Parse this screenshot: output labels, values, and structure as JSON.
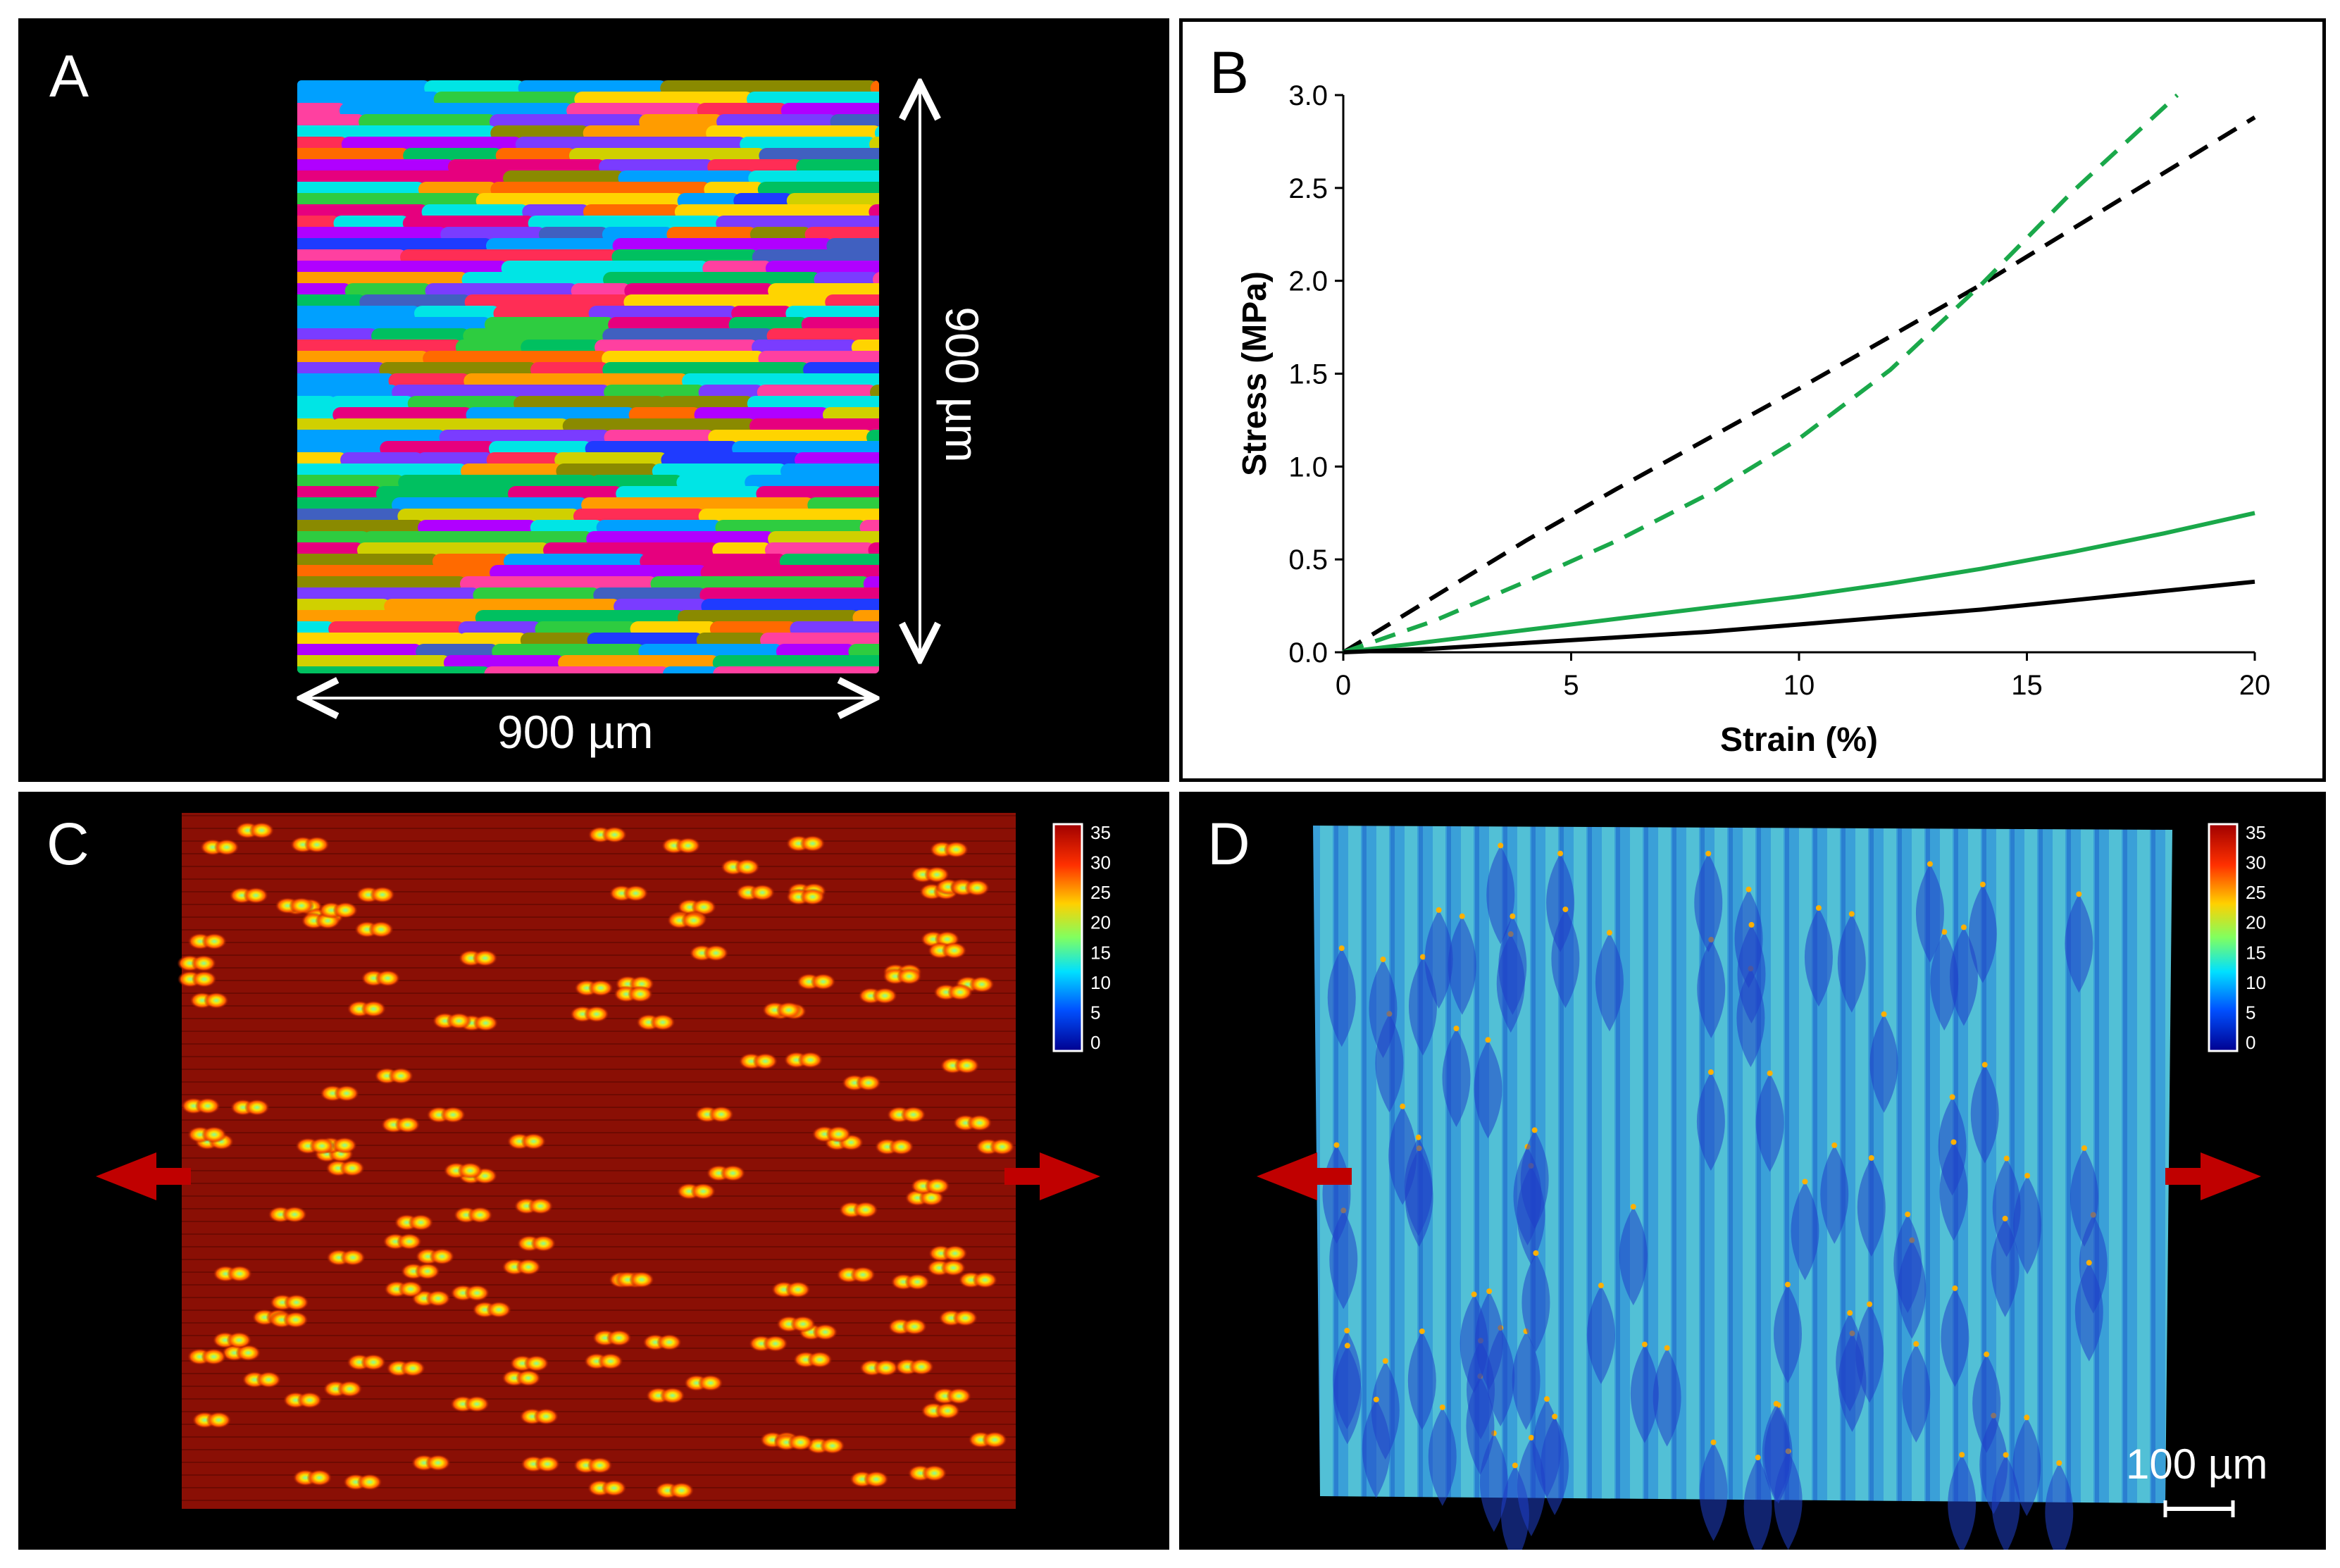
{
  "panels": {
    "a": {
      "letter": "A",
      "dim_horizontal": "900 µm",
      "dim_vertical": "900 µm"
    },
    "b": {
      "letter": "B"
    },
    "c": {
      "letter": "C",
      "colorbar_ticks": [
        "35",
        "30",
        "25",
        "20",
        "15",
        "10",
        "5",
        "0"
      ]
    },
    "d": {
      "letter": "D",
      "colorbar_ticks": [
        "35",
        "30",
        "25",
        "20",
        "15",
        "10",
        "5",
        "0"
      ],
      "scale_bar": "100 µm"
    }
  },
  "chart_data": {
    "type": "line",
    "title": "",
    "xlabel": "Strain (%)",
    "ylabel": "Stress (MPa)",
    "xlim": [
      0,
      20
    ],
    "ylim": [
      0,
      3.0
    ],
    "xticks": [
      "0",
      "5",
      "10",
      "15",
      "20"
    ],
    "yticks": [
      "0.0",
      "0.5",
      "1.0",
      "1.5",
      "2.0",
      "2.5",
      "3.0"
    ],
    "series": [
      {
        "color": "#000000",
        "style": "dashed",
        "x": [
          0,
          2,
          4,
          6,
          8,
          10,
          12,
          14,
          16,
          18,
          20
        ],
        "y": [
          0,
          0.3,
          0.6,
          0.88,
          1.15,
          1.42,
          1.7,
          1.98,
          2.28,
          2.58,
          2.88
        ]
      },
      {
        "color": "#1aa84a",
        "style": "dashed",
        "x": [
          0,
          2,
          4,
          6,
          8,
          10,
          12,
          14,
          16,
          18.3
        ],
        "y": [
          0,
          0.17,
          0.38,
          0.6,
          0.85,
          1.15,
          1.52,
          1.98,
          2.48,
          3.0
        ]
      },
      {
        "color": "#1aa84a",
        "style": "solid",
        "x": [
          0,
          2,
          4,
          6,
          8,
          10,
          12,
          14,
          16,
          18,
          20
        ],
        "y": [
          0,
          0.06,
          0.12,
          0.18,
          0.24,
          0.3,
          0.37,
          0.45,
          0.54,
          0.64,
          0.75
        ]
      },
      {
        "color": "#000000",
        "style": "solid",
        "x": [
          0,
          2,
          4,
          6,
          8,
          10,
          12,
          14,
          16,
          18,
          20
        ],
        "y": [
          0,
          0.02,
          0.05,
          0.08,
          0.11,
          0.15,
          0.19,
          0.23,
          0.28,
          0.33,
          0.38
        ]
      }
    ]
  }
}
